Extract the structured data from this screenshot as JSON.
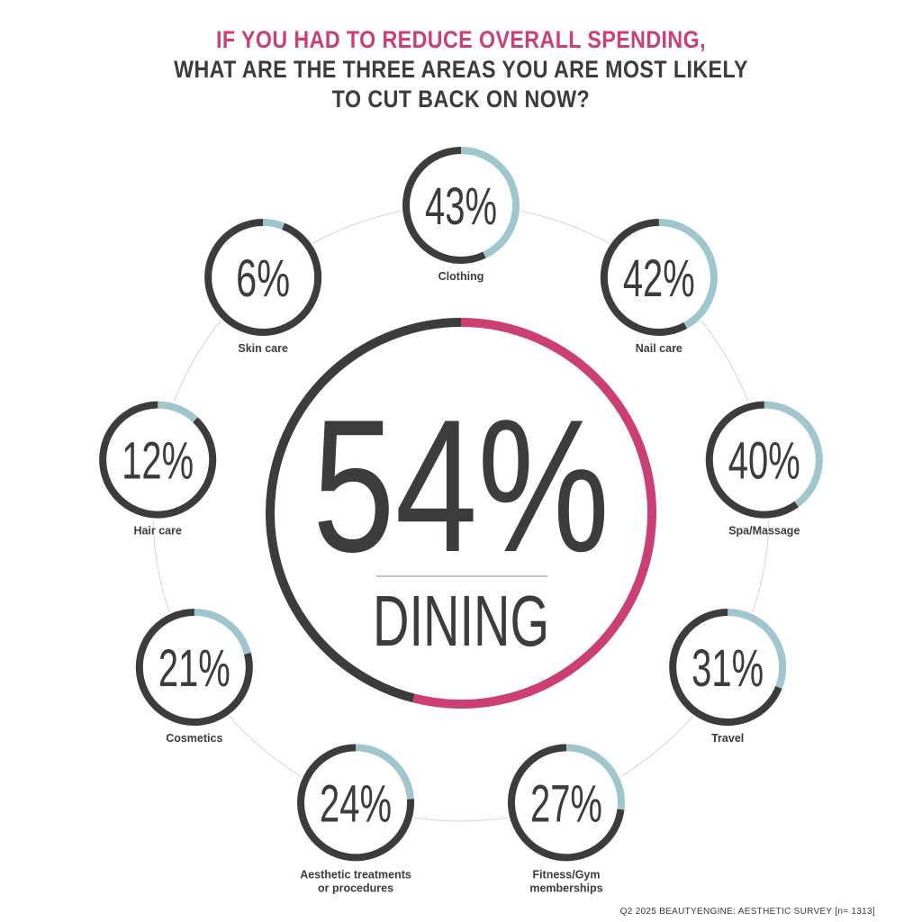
{
  "title": {
    "line1": "IF YOU HAD TO REDUCE OVERALL SPENDING,",
    "line2": "WHAT ARE THE THREE AREAS YOU ARE MOST LIKELY",
    "line3": "TO CUT BACK ON NOW?"
  },
  "source": "Q2 2025 BEAUTYENGINE: AESTHETIC SURVEY [n= 1313]",
  "colors": {
    "highlight": "#cc3f74",
    "ring_dark": "#3c3c3e",
    "ring_light": "#9fc6cc",
    "orbit": "#d4d4d4"
  },
  "chart_data": {
    "type": "donut",
    "unit": "%",
    "highlight": {
      "label": "DINING",
      "value": 54,
      "display": "54%"
    },
    "items": [
      {
        "label": "Clothing",
        "value": 43,
        "display": "43%"
      },
      {
        "label": "Nail care",
        "value": 42,
        "display": "42%"
      },
      {
        "label": "Spa/Massage",
        "value": 40,
        "display": "40%"
      },
      {
        "label": "Travel",
        "value": 31,
        "display": "31%"
      },
      {
        "label": "Fitness/Gym memberships",
        "value": 27,
        "display": "27%"
      },
      {
        "label": "Aesthetic treatments or procedures",
        "value": 24,
        "display": "24%"
      },
      {
        "label": "Cosmetics",
        "value": 21,
        "display": "21%"
      },
      {
        "label": "Hair care",
        "value": 12,
        "display": "12%"
      },
      {
        "label": "Skin care",
        "value": 6,
        "display": "6%"
      }
    ]
  }
}
